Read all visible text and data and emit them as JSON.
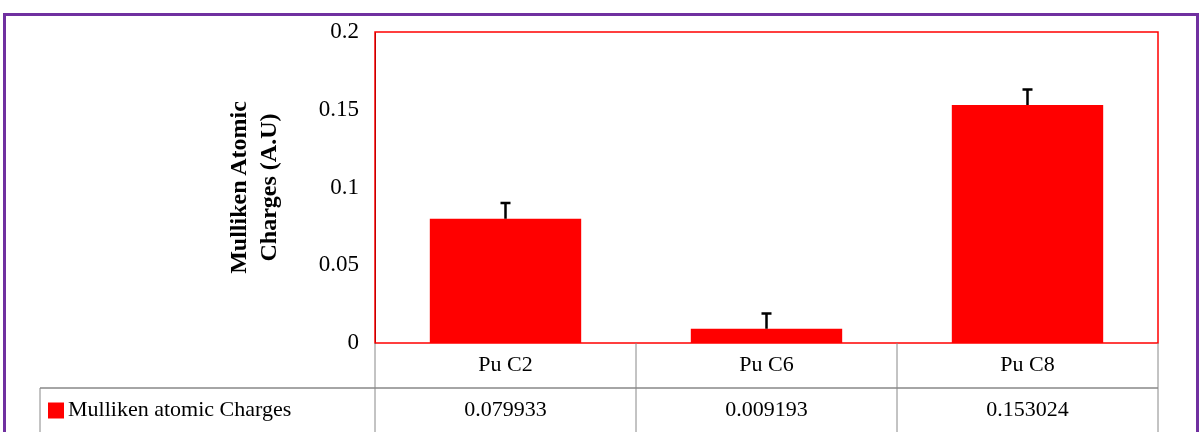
{
  "chart_data": {
    "type": "bar",
    "ylabel": "Mulliken Atomic Charges (A.U)",
    "categories": [
      "Pu C2",
      "Pu C6",
      "Pu C8"
    ],
    "series": [
      {
        "name": "Mulliken atomic Charges",
        "color": "#ff0000",
        "values": [
          0.079933,
          0.009193,
          0.153024
        ],
        "errors": [
          [
            0.079933,
            0.09
          ],
          [
            0.009193,
            0.019
          ],
          [
            0.153024,
            0.163
          ]
        ]
      }
    ],
    "ylim": [
      0,
      0.2
    ],
    "yticks": [
      0,
      0.05,
      0.1,
      0.15,
      0.2
    ],
    "grid": false,
    "legend": "bottom",
    "data_labels": true
  }
}
